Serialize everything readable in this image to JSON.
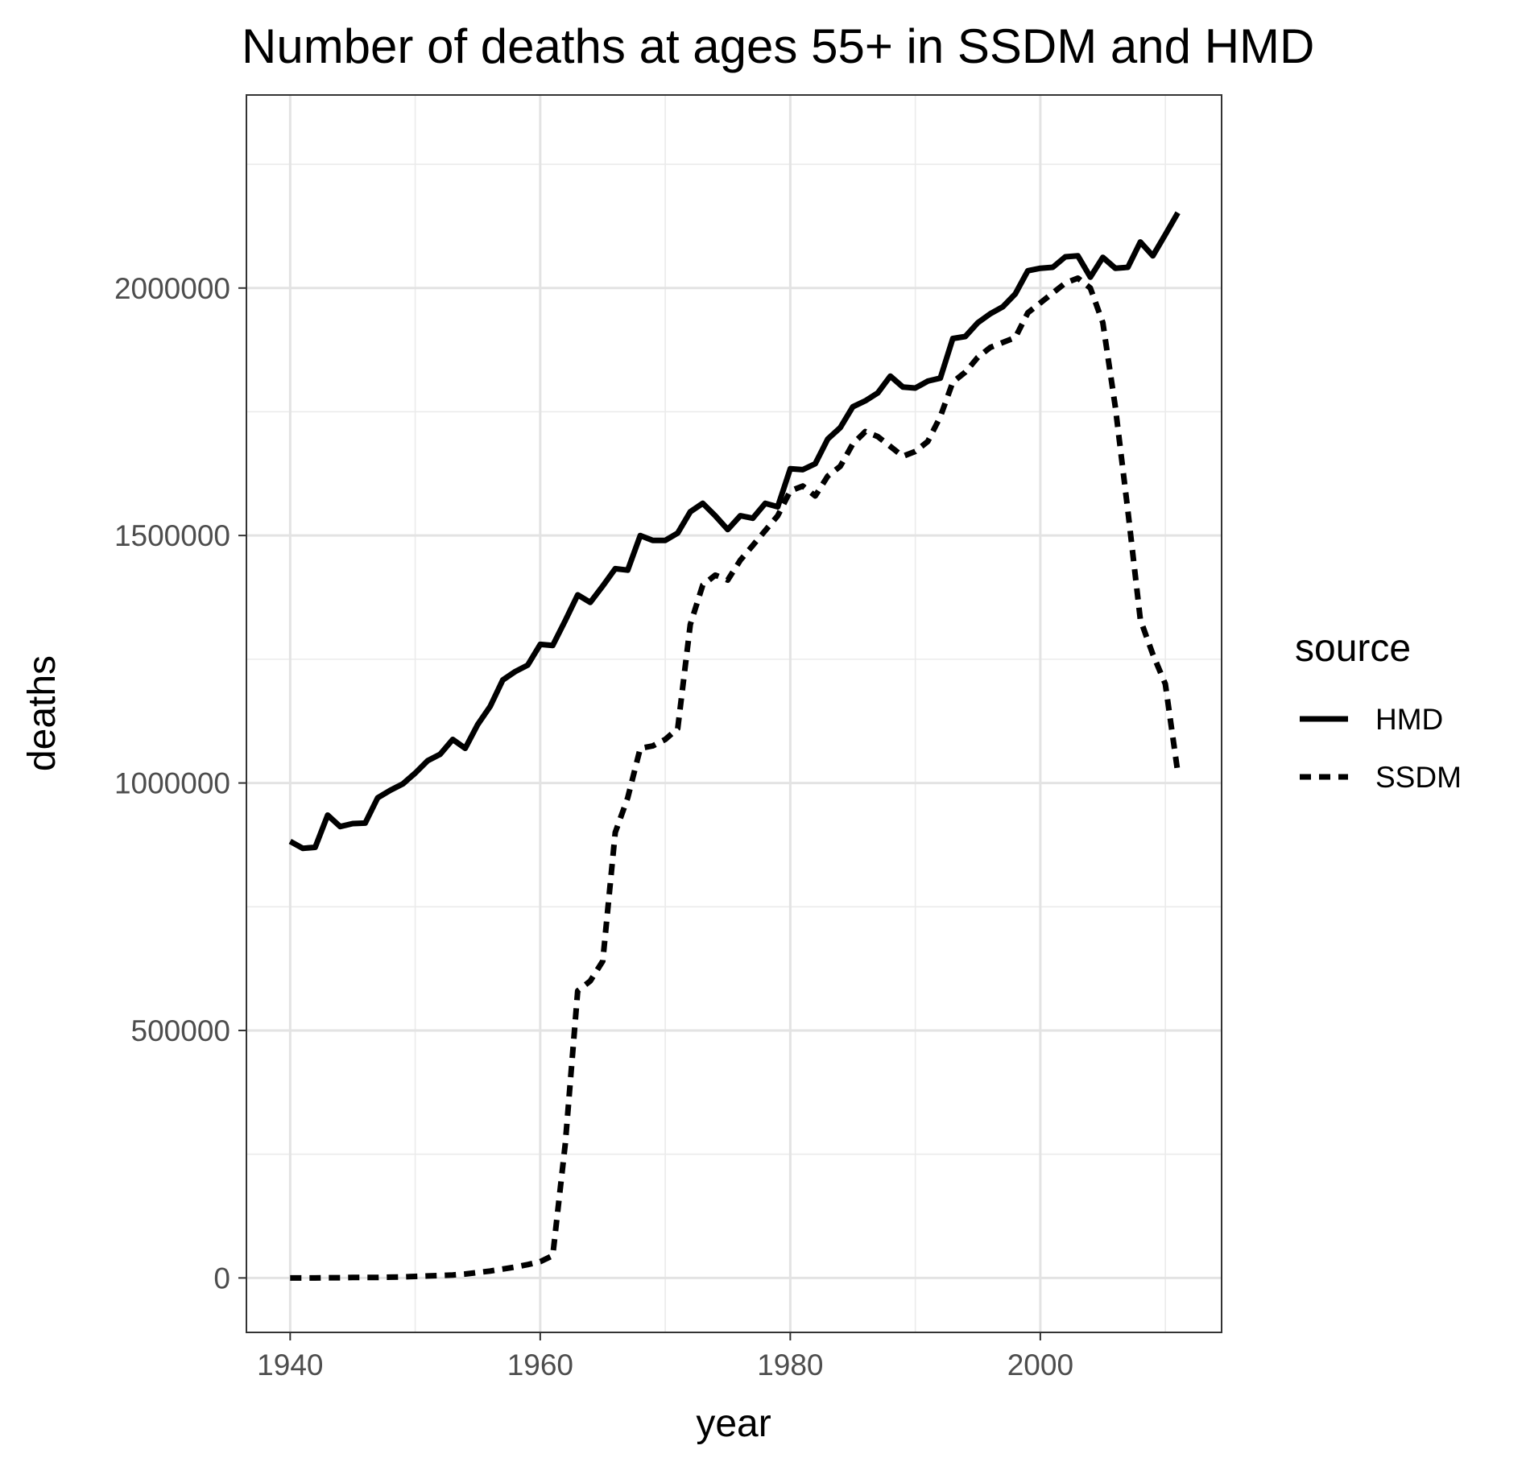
{
  "chart_data": {
    "type": "line",
    "title": "Number of deaths at ages 55+ in  SSDM and HMD",
    "xlabel": "year",
    "ylabel": "deaths",
    "xlim": [
      1936.5,
      2014.5
    ],
    "ylim": [
      -110000,
      2390000
    ],
    "x_ticks": [
      1940,
      1960,
      1980,
      2000
    ],
    "y_ticks": [
      0,
      500000,
      1000000,
      1500000,
      2000000
    ],
    "x_tick_labels": [
      "1940",
      "1960",
      "1980",
      "2000"
    ],
    "y_tick_labels": [
      "0",
      "500000",
      "1000000",
      "1500000",
      "2000000"
    ],
    "grid": true,
    "legend": {
      "title": "source",
      "position": "right",
      "entries": [
        "HMD",
        "SSDM"
      ]
    },
    "series": [
      {
        "name": "HMD",
        "line_style": "solid",
        "color": "#000000",
        "x": [
          1940,
          1941,
          1942,
          1943,
          1944,
          1945,
          1946,
          1947,
          1948,
          1949,
          1950,
          1951,
          1952,
          1953,
          1954,
          1955,
          1956,
          1957,
          1958,
          1959,
          1960,
          1961,
          1962,
          1963,
          1964,
          1965,
          1966,
          1967,
          1968,
          1969,
          1970,
          1971,
          1972,
          1973,
          1974,
          1975,
          1976,
          1977,
          1978,
          1979,
          1980,
          1981,
          1982,
          1983,
          1984,
          1985,
          1986,
          1987,
          1988,
          1989,
          1990,
          1991,
          1992,
          1993,
          1994,
          1995,
          1996,
          1997,
          1998,
          1999,
          2000,
          2001,
          2002,
          2003,
          2004,
          2005,
          2006,
          2007,
          2008,
          2009,
          2010,
          2011
        ],
        "values": [
          882000,
          868000,
          870000,
          935000,
          912000,
          918000,
          919000,
          970000,
          985000,
          998000,
          1020000,
          1045000,
          1058000,
          1088000,
          1070000,
          1118000,
          1155000,
          1208000,
          1225000,
          1238000,
          1280000,
          1278000,
          1328000,
          1380000,
          1365000,
          1398000,
          1433000,
          1430000,
          1500000,
          1490000,
          1490000,
          1505000,
          1548000,
          1565000,
          1540000,
          1512000,
          1540000,
          1535000,
          1565000,
          1558000,
          1635000,
          1633000,
          1645000,
          1695000,
          1718000,
          1760000,
          1772000,
          1788000,
          1822000,
          1800000,
          1798000,
          1812000,
          1818000,
          1898000,
          1902000,
          1930000,
          1948000,
          1962000,
          1988000,
          2035000,
          2040000,
          2042000,
          2063000,
          2065000,
          2022000,
          2062000,
          2040000,
          2042000,
          2093000,
          2065000,
          2108000,
          2152000
        ]
      },
      {
        "name": "SSDM",
        "line_style": "dashed",
        "color": "#000000",
        "x": [
          1940,
          1941,
          1942,
          1943,
          1944,
          1945,
          1946,
          1947,
          1948,
          1949,
          1950,
          1951,
          1952,
          1953,
          1954,
          1955,
          1956,
          1957,
          1958,
          1959,
          1960,
          1961,
          1962,
          1963,
          1964,
          1965,
          1966,
          1967,
          1968,
          1969,
          1970,
          1971,
          1972,
          1973,
          1974,
          1975,
          1976,
          1977,
          1978,
          1979,
          1980,
          1981,
          1982,
          1983,
          1984,
          1985,
          1986,
          1987,
          1988,
          1989,
          1990,
          1991,
          1992,
          1993,
          1994,
          1995,
          1996,
          1997,
          1998,
          1999,
          2000,
          2001,
          2002,
          2003,
          2004,
          2005,
          2006,
          2007,
          2008,
          2009,
          2010,
          2011
        ],
        "values": [
          0,
          0,
          0,
          500,
          500,
          1000,
          1000,
          1000,
          1500,
          2000,
          3000,
          4000,
          5000,
          6000,
          8000,
          11000,
          14000,
          18000,
          22000,
          27000,
          33000,
          45000,
          270000,
          580000,
          600000,
          640000,
          900000,
          970000,
          1070000,
          1075000,
          1088000,
          1110000,
          1320000,
          1400000,
          1420000,
          1410000,
          1450000,
          1480000,
          1510000,
          1540000,
          1590000,
          1600000,
          1580000,
          1620000,
          1640000,
          1685000,
          1710000,
          1700000,
          1680000,
          1660000,
          1670000,
          1690000,
          1740000,
          1810000,
          1830000,
          1860000,
          1880000,
          1890000,
          1900000,
          1950000,
          1970000,
          1990000,
          2010000,
          2020000,
          2000000,
          1930000,
          1760000,
          1550000,
          1330000,
          1260000,
          1200000,
          1020000
        ]
      }
    ]
  }
}
